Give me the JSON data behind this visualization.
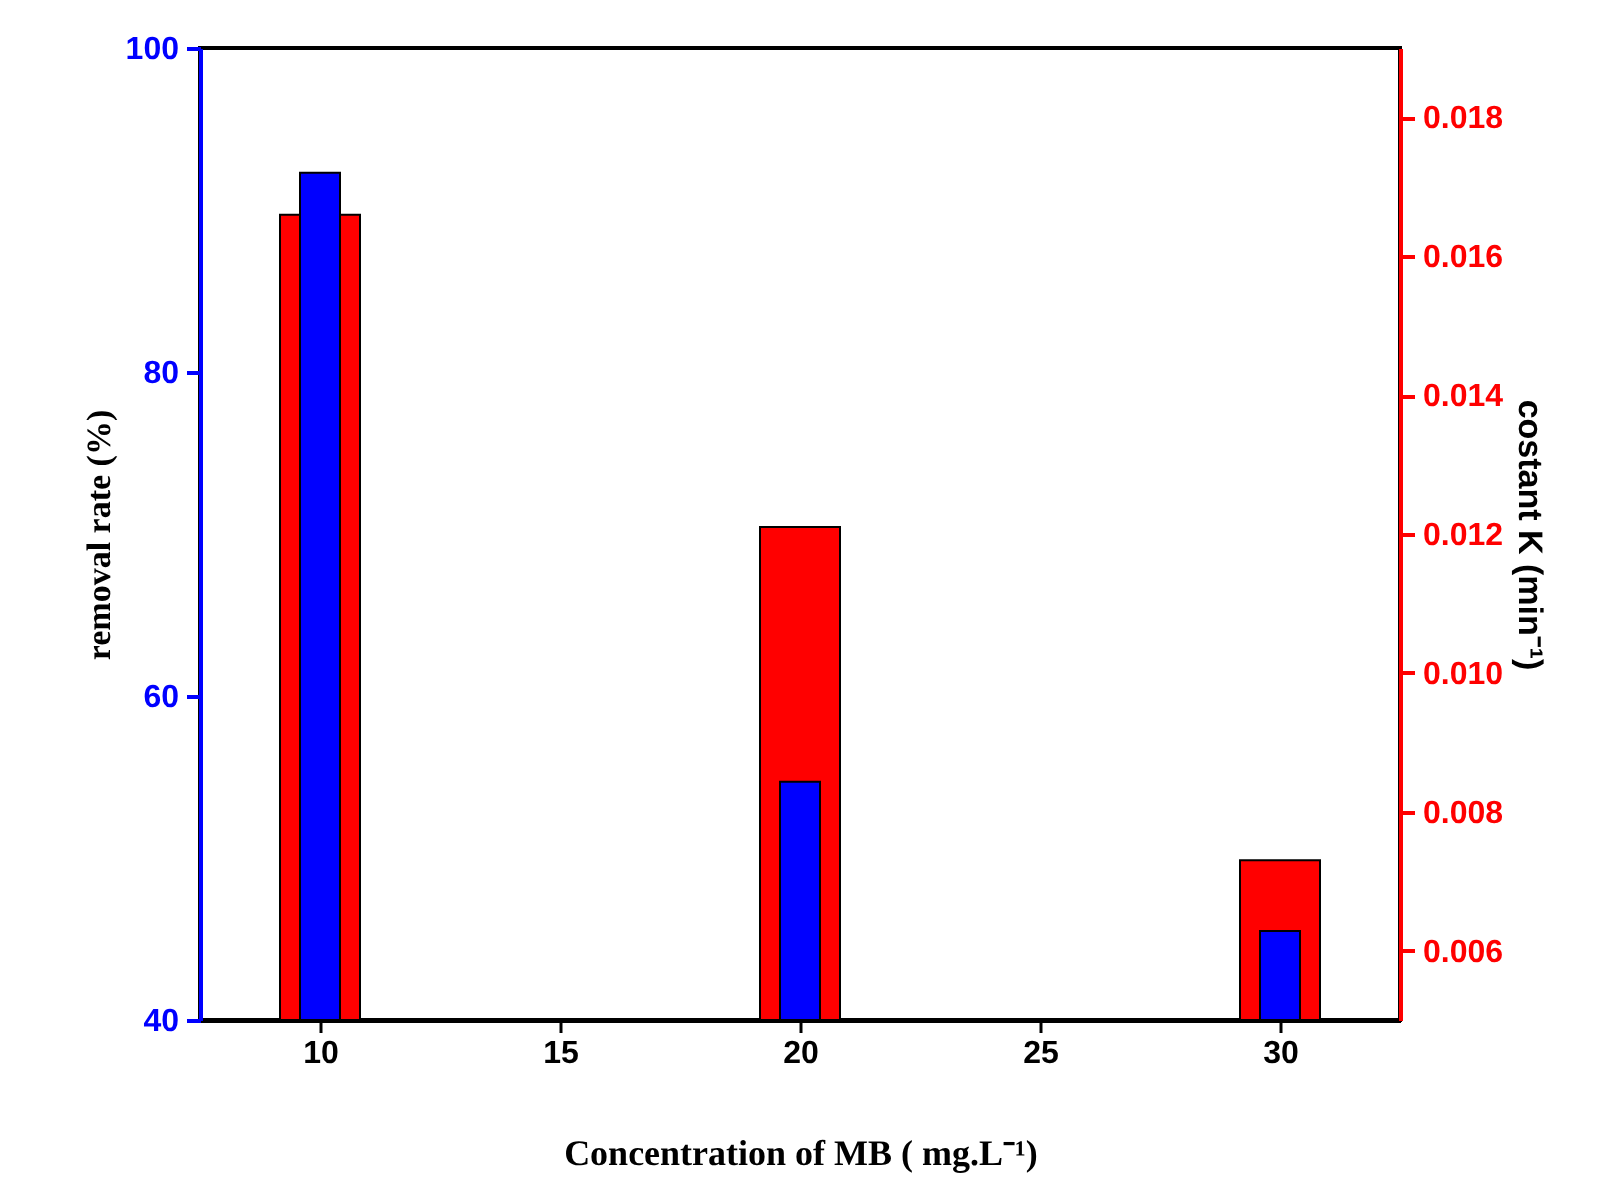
{
  "chart_data": {
    "type": "bar",
    "x": [
      10,
      20,
      30
    ],
    "xlabel": "Concentration of MB ( mg.L⁻¹)",
    "ylabel": "removal rate (%)",
    "y2label": "costant  K (min⁻¹)",
    "xlim": [
      7.5,
      32.5
    ],
    "xticks": [
      10,
      15,
      20,
      25,
      30
    ],
    "ylim": [
      40,
      100
    ],
    "yticks": [
      40,
      60,
      80,
      100
    ],
    "y2lim": [
      0.005,
      0.019
    ],
    "y2ticks": [
      0.006,
      0.008,
      {
        "value": 0.01,
        "label": "0.010"
      },
      0.012,
      0.014,
      0.016,
      0.018
    ],
    "grid": false,
    "series": [
      {
        "color": "#ff0000",
        "axis": "y2",
        "values": [
          0.0166,
          0.0121,
          0.0073
        ]
      },
      {
        "color": "#0000ff",
        "values": [
          92.3,
          54.7,
          45.5
        ]
      }
    ]
  }
}
